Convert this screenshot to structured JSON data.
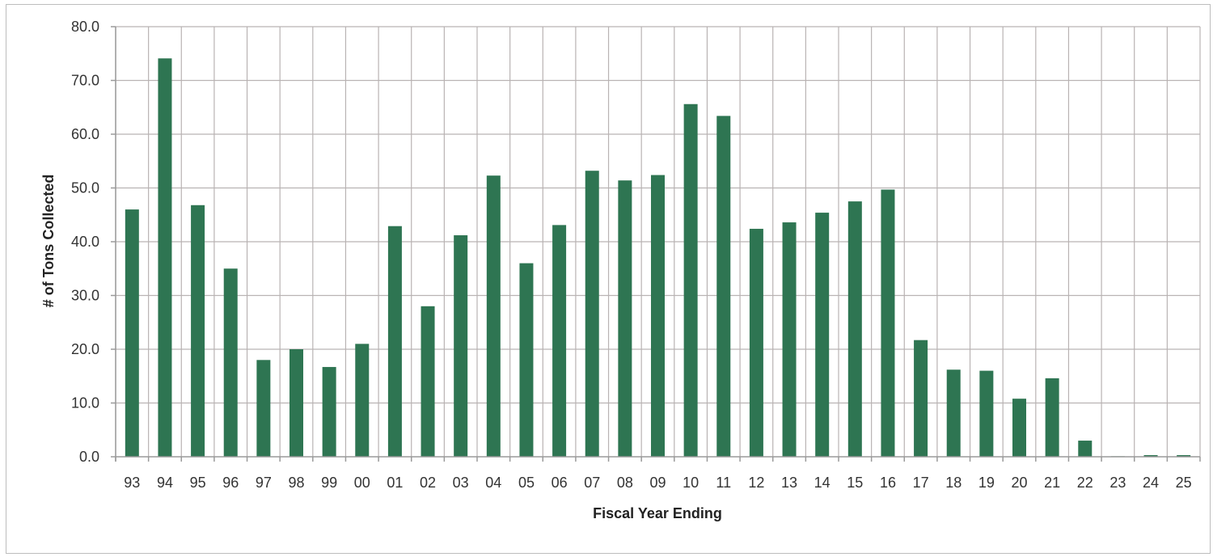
{
  "chart_data": {
    "type": "bar",
    "xlabel": "Fiscal Year Ending",
    "ylabel": "# of Tons Collected",
    "ylim": [
      0,
      80
    ],
    "ytick_values": [
      0,
      10,
      20,
      30,
      40,
      50,
      60,
      70,
      80
    ],
    "ytick_labels": [
      "0.0",
      "10.0",
      "20.0",
      "30.0",
      "40.0",
      "50.0",
      "60.0",
      "70.0",
      "80.0"
    ],
    "categories": [
      "93",
      "94",
      "95",
      "96",
      "97",
      "98",
      "99",
      "00",
      "01",
      "02",
      "03",
      "04",
      "05",
      "06",
      "07",
      "08",
      "09",
      "10",
      "11",
      "12",
      "13",
      "14",
      "15",
      "16",
      "17",
      "18",
      "19",
      "20",
      "21",
      "22",
      "23",
      "24",
      "25"
    ],
    "values": [
      46.0,
      74.1,
      46.8,
      35.0,
      18.0,
      20.0,
      16.7,
      21.0,
      42.9,
      28.0,
      41.2,
      52.3,
      36.0,
      43.1,
      53.2,
      51.4,
      52.4,
      65.6,
      63.4,
      42.4,
      43.6,
      45.4,
      47.5,
      49.7,
      21.7,
      16.2,
      16.0,
      10.8,
      14.6,
      3.0,
      0.1,
      0.3,
      0.3
    ],
    "grid": true,
    "legend": false,
    "colors": {
      "bar": "#2e7552",
      "grid": "#b9b3b3",
      "axis": "#9a9a9a"
    }
  }
}
